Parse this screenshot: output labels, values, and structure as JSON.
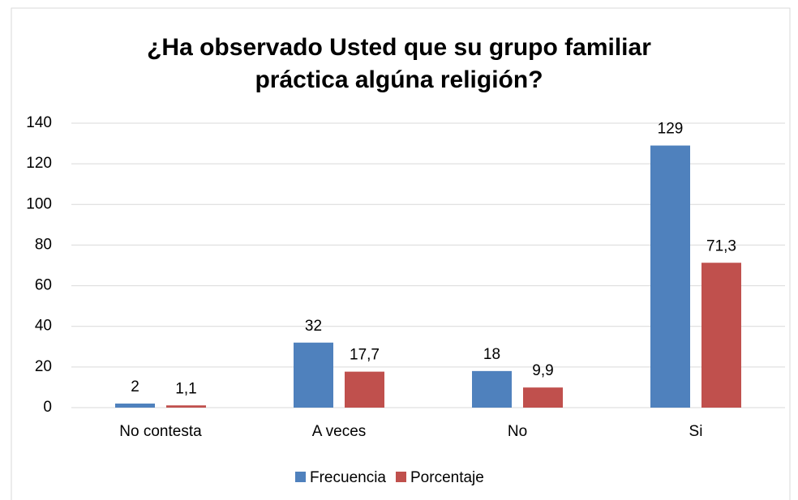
{
  "chart_data": {
    "type": "bar",
    "title": [
      "¿Ha observado Usted que su grupo familiar",
      "práctica algúna religión?"
    ],
    "categories": [
      "No contesta",
      "A veces",
      "No",
      "Si"
    ],
    "series": [
      {
        "name": "Frecuencia",
        "color": "#4f81bd",
        "values": [
          2,
          32,
          18,
          129
        ]
      },
      {
        "name": "Porcentaje",
        "color": "#c0504d",
        "values": [
          1.1,
          17.7,
          9.9,
          71.3
        ],
        "value_labels": [
          "1,1",
          "17,7",
          "9,9",
          "71,3"
        ]
      }
    ],
    "ylim": [
      0,
      140
    ],
    "yticks": [
      0,
      20,
      40,
      60,
      80,
      100,
      120,
      140
    ],
    "grid": true,
    "legend": "bottom"
  }
}
